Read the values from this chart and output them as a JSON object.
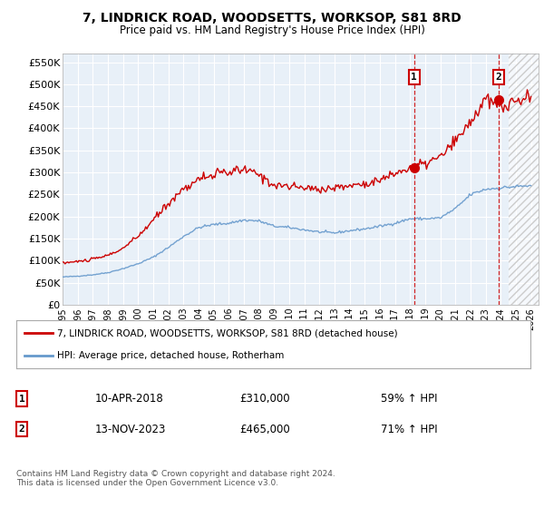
{
  "title": "7, LINDRICK ROAD, WOODSETTS, WORKSOP, S81 8RD",
  "subtitle": "Price paid vs. HM Land Registry's House Price Index (HPI)",
  "ylim": [
    0,
    570000
  ],
  "xlim_start": 1995.0,
  "xlim_end": 2026.5,
  "yticks": [
    0,
    50000,
    100000,
    150000,
    200000,
    250000,
    300000,
    350000,
    400000,
    450000,
    500000,
    550000
  ],
  "ytick_labels": [
    "£0",
    "£50K",
    "£100K",
    "£150K",
    "£200K",
    "£250K",
    "£300K",
    "£350K",
    "£400K",
    "£450K",
    "£500K",
    "£550K"
  ],
  "sale1_date": 2018.27,
  "sale1_price": 310000,
  "sale1_label": "1",
  "sale2_date": 2023.87,
  "sale2_price": 465000,
  "sale2_label": "2",
  "legend_line1": "7, LINDRICK ROAD, WOODSETTS, WORKSOP, S81 8RD (detached house)",
  "legend_line2": "HPI: Average price, detached house, Rotherham",
  "annotation1_date": "10-APR-2018",
  "annotation1_price": "£310,000",
  "annotation1_hpi": "59% ↑ HPI",
  "annotation2_date": "13-NOV-2023",
  "annotation2_price": "£465,000",
  "annotation2_hpi": "71% ↑ HPI",
  "footer": "Contains HM Land Registry data © Crown copyright and database right 2024.\nThis data is licensed under the Open Government Licence v3.0.",
  "red_color": "#cc0000",
  "blue_color": "#6699cc",
  "chart_bg": "#e8f0f8",
  "grid_color": "#ffffff",
  "hatch_start": 2024.5,
  "bg_color": "#ffffff"
}
